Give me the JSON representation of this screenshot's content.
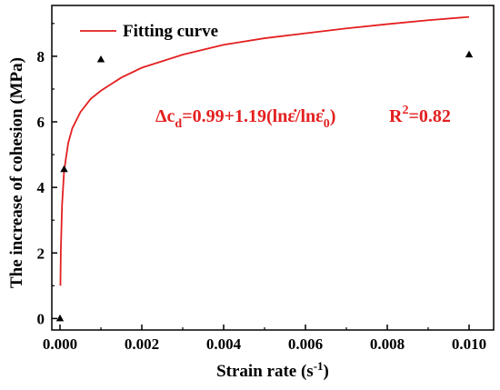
{
  "chart_data": {
    "type": "scatter",
    "xlabel": "Strain rate (s",
    "xlabel_sup": "-1",
    "xlabel_end": ")",
    "ylabel": "The increase of cohesion (MPa)",
    "xlim": [
      -0.0002,
      0.0106
    ],
    "ylim": [
      -0.35,
      9.55
    ],
    "x_ticks": [
      0.0,
      0.002,
      0.004,
      0.006,
      0.008,
      0.01
    ],
    "x_tick_labels": [
      "0.000",
      "0.002",
      "0.004",
      "0.006",
      "0.008",
      "0.010"
    ],
    "y_ticks": [
      0,
      2,
      4,
      6,
      8
    ],
    "y_tick_labels": [
      "0",
      "2",
      "4",
      "6",
      "8"
    ],
    "points": [
      {
        "x": 0.0,
        "y": 0.0
      },
      {
        "x": 0.0001,
        "y": 4.55
      },
      {
        "x": 0.001,
        "y": 7.9
      },
      {
        "x": 0.01,
        "y": 8.05
      }
    ],
    "fitting_curve": {
      "label": "Fitting curve",
      "color": "#e32020",
      "x": [
        1e-05,
        2e-05,
        5e-05,
        0.0001,
        0.0002,
        0.0003,
        0.0005,
        0.00075,
        0.001,
        0.0015,
        0.002,
        0.003,
        0.004,
        0.005,
        0.006,
        0.007,
        0.008,
        0.009,
        0.01
      ],
      "y": [
        1.0,
        2.05,
        3.45,
        4.5,
        5.35,
        5.8,
        6.3,
        6.7,
        6.95,
        7.35,
        7.65,
        8.05,
        8.35,
        8.55,
        8.7,
        8.85,
        8.98,
        9.1,
        9.2
      ]
    },
    "equation": {
      "lhs": "Δc",
      "lhs_sub": "d",
      "rhs_a": "=0.99+1.19(lnε̇/lnε̇",
      "rhs_sub": "0",
      "rhs_b": ")",
      "r_label": "R",
      "r_sup": "2",
      "r_value": "=0.82"
    },
    "marker_color": "#000000",
    "grid": false,
    "legend_position": "top-left"
  }
}
